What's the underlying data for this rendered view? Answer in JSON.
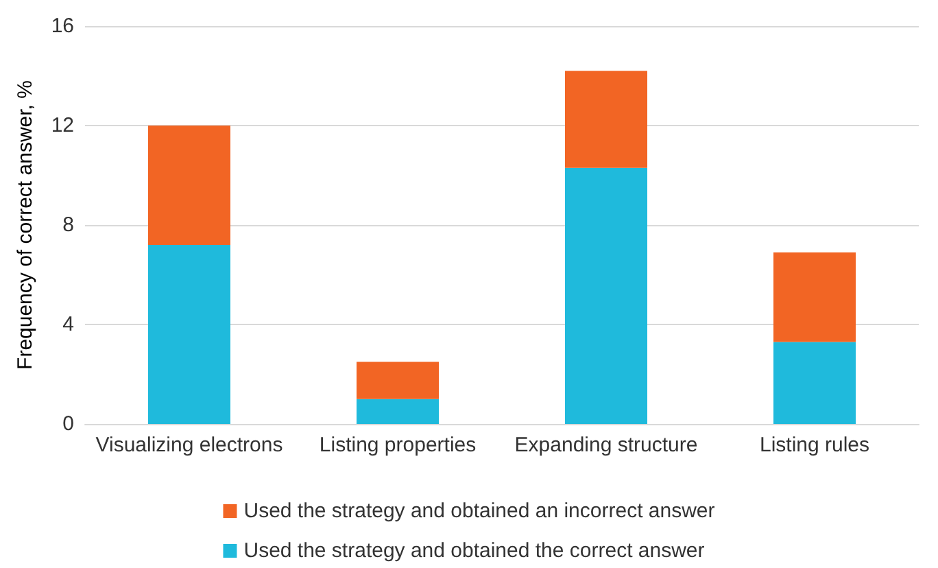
{
  "chart_data": {
    "type": "bar",
    "stacked": true,
    "ylabel": "Frequency of correct answer, %",
    "categories": [
      "Visualizing electrons",
      "Listing properties",
      "Expanding structure",
      "Listing rules"
    ],
    "series": [
      {
        "name": "Used the strategy and obtained the correct answer",
        "color": "#1fbadc",
        "values": [
          7.2,
          1.0,
          10.3,
          3.3
        ]
      },
      {
        "name": "Used the strategy and obtained an incorrect answer",
        "color": "#f26524",
        "values": [
          4.8,
          1.5,
          3.9,
          3.6
        ]
      }
    ],
    "ylim": [
      0,
      16
    ],
    "yticks": [
      0,
      4,
      8,
      12,
      16
    ],
    "grid": "y",
    "legend": "bottom"
  }
}
